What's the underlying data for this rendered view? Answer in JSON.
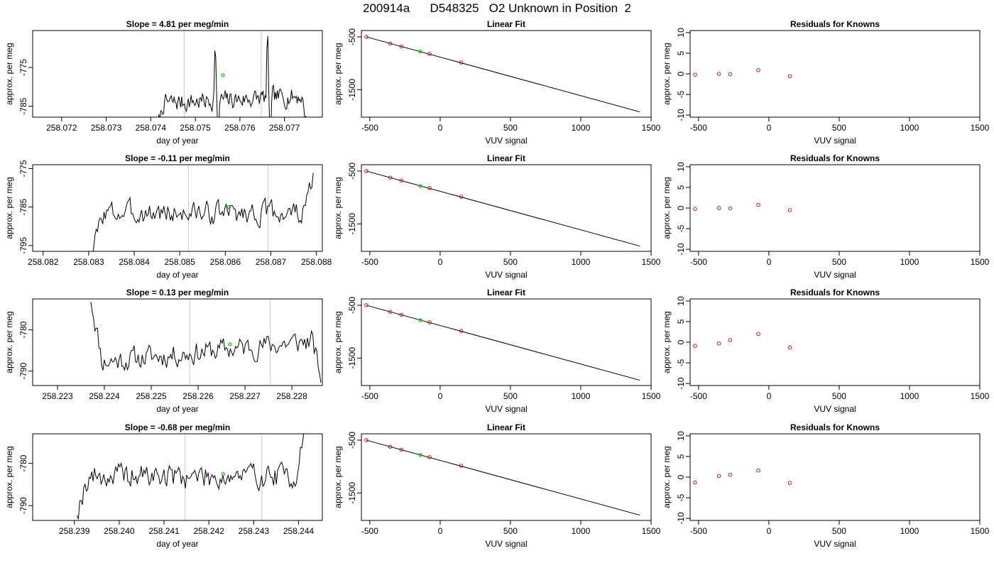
{
  "figure": {
    "title": "200914a      D548325   O2 Unknown in Position  2",
    "colors": {
      "line": "#000000",
      "marker": "#cc0000",
      "highlight": "#00cc00",
      "vline": "#c8c8c8"
    }
  },
  "chart_data": [
    {
      "type": "line",
      "title": "Slope =  4.81  per meg/min",
      "xlabel": "day of year",
      "ylabel": "approx. per meg",
      "xlim": [
        258.07135,
        258.07785
      ],
      "ylim": [
        -787.8,
        -765.5
      ],
      "xticks": [
        258.072,
        258.073,
        258.074,
        258.075,
        258.076,
        258.077
      ],
      "xtick_labels": [
        "258.072",
        "258.073",
        "258.074",
        "258.075",
        "258.076",
        "258.077"
      ],
      "yticks": [
        -785,
        -775
      ],
      "ytick_labels": [
        "-785",
        "-775"
      ],
      "vlines": [
        258.07475,
        258.07648
      ],
      "highlight_point": {
        "x": 258.07562,
        "y": -777.0
      },
      "series": [
        {
          "x_start": 258.07412,
          "x_end": 258.07752,
          "n": 160,
          "base": -784.3,
          "slope": 2.0,
          "noise": 1.3,
          "spikes": [
            [
              0.39,
              19
            ],
            [
              0.41,
              -16
            ],
            [
              0.735,
              18
            ],
            [
              0.755,
              -14
            ]
          ],
          "start_rise": -8,
          "end_drop": -9,
          "seed": 7
        }
      ]
    },
    {
      "type": "scatter",
      "title": "Linear Fit",
      "xlabel": "VUV signal",
      "ylabel": "approx. per meg",
      "xlim": [
        -560,
        1500
      ],
      "ylim": [
        -2020,
        -380
      ],
      "xticks": [
        -500,
        0,
        500,
        1000,
        1500
      ],
      "xtick_labels": [
        "-500",
        "0",
        "500",
        "1000",
        "1500"
      ],
      "yticks": [
        -500,
        -1500
      ],
      "ytick_labels": [
        "-500",
        "-1500"
      ],
      "fit_line": {
        "x": [
          -525,
          1420
        ],
        "y": [
          -500,
          -1920
        ]
      },
      "points": {
        "x": [
          -525,
          -355,
          -275,
          -75,
          150
        ],
        "y": [
          -500,
          -625,
          -680,
          -822,
          -985
        ]
      },
      "highlight_point": {
        "x": -140,
        "y": -777
      }
    },
    {
      "type": "scatter",
      "title": "Residuals for Knowns",
      "xlabel": "VUV signal",
      "ylabel": "approx. per meg",
      "xlim": [
        -560,
        1500
      ],
      "ylim": [
        -10.5,
        10.5
      ],
      "xticks": [
        -500,
        0,
        500,
        1000,
        1500
      ],
      "xtick_labels": [
        "-500",
        "0",
        "500",
        "1000",
        "1500"
      ],
      "yticks": [
        -10,
        -5,
        0,
        5,
        10
      ],
      "ytick_labels": [
        "-10",
        "-5",
        "0",
        "5",
        "10"
      ],
      "points": {
        "x": [
          -525,
          -355,
          -275,
          -75,
          150
        ],
        "y": [
          -0.2,
          0.0,
          -0.1,
          0.9,
          -0.6
        ]
      }
    },
    {
      "type": "line",
      "title": "Slope =  -0.11  per meg/min",
      "xlabel": "day of year",
      "ylabel": "approx. per meg",
      "xlim": [
        258.08177,
        258.08813
      ],
      "ylim": [
        -796.5,
        -774.0
      ],
      "xticks": [
        258.082,
        258.083,
        258.084,
        258.085,
        258.086,
        258.087,
        258.088
      ],
      "xtick_labels": [
        "258.082",
        "258.083",
        "258.084",
        "258.085",
        "258.086",
        "258.087",
        "258.088"
      ],
      "yticks": [
        -795,
        -785,
        -775
      ],
      "ytick_labels": [
        "-795",
        "-785",
        "-775"
      ],
      "vlines": [
        258.08519,
        258.08694
      ],
      "highlight_point": {
        "x": 258.08608,
        "y": -785.0
      },
      "series": [
        {
          "x_start": 258.08308,
          "x_end": 258.08793,
          "n": 170,
          "base": -786.5,
          "slope": 0.0,
          "noise": 1.6,
          "spikes": [],
          "start_rise": -10,
          "end_drop": 10,
          "seed": 3
        }
      ]
    },
    {
      "type": "scatter",
      "title": "Linear Fit",
      "xlabel": "VUV signal",
      "ylabel": "approx. per meg",
      "xlim": [
        -560,
        1500
      ],
      "ylim": [
        -2020,
        -380
      ],
      "xticks": [
        -500,
        0,
        500,
        1000,
        1500
      ],
      "xtick_labels": [
        "-500",
        "0",
        "500",
        "1000",
        "1500"
      ],
      "yticks": [
        -500,
        -1500
      ],
      "ytick_labels": [
        "-500",
        "-1500"
      ],
      "fit_line": {
        "x": [
          -525,
          1420
        ],
        "y": [
          -500,
          -1920
        ]
      },
      "points": {
        "x": [
          -525,
          -355,
          -275,
          -75,
          150
        ],
        "y": [
          -500,
          -625,
          -680,
          -822,
          -985
        ]
      },
      "highlight_point": {
        "x": -140,
        "y": -785
      }
    },
    {
      "type": "scatter",
      "title": "Residuals for Knowns",
      "xlabel": "VUV signal",
      "ylabel": "approx. per meg",
      "xlim": [
        -560,
        1500
      ],
      "ylim": [
        -10.5,
        10.5
      ],
      "xticks": [
        -500,
        0,
        500,
        1000,
        1500
      ],
      "xtick_labels": [
        "-500",
        "0",
        "500",
        "1000",
        "1500"
      ],
      "yticks": [
        -10,
        -5,
        0,
        5,
        10
      ],
      "ytick_labels": [
        "-10",
        "-5",
        "0",
        "5",
        "10"
      ],
      "points": {
        "x": [
          -525,
          -355,
          -275,
          -75,
          150
        ],
        "y": [
          -0.2,
          0.0,
          -0.1,
          0.8,
          -0.5
        ]
      }
    },
    {
      "type": "line",
      "title": "Slope =  0.13  per meg/min",
      "xlabel": "day of year",
      "ylabel": "approx. per meg",
      "xlim": [
        258.22247,
        258.22865
      ],
      "ylim": [
        -793.5,
        -772.5
      ],
      "xticks": [
        258.223,
        258.224,
        258.225,
        258.226,
        258.227,
        258.228
      ],
      "xtick_labels": [
        "258.223",
        "258.224",
        "258.225",
        "258.226",
        "258.227",
        "258.228"
      ],
      "yticks": [
        -790,
        -780
      ],
      "ytick_labels": [
        "-790",
        "-780"
      ],
      "vlines": [
        258.22582,
        258.22754
      ],
      "highlight_point": {
        "x": 258.22668,
        "y": -783.5
      },
      "series": [
        {
          "x_start": 258.22371,
          "x_end": 258.22862,
          "n": 170,
          "base": -788.0,
          "slope": 5.5,
          "noise": 1.5,
          "spikes": [],
          "start_rise": 16,
          "end_drop": -9,
          "seed": 11
        }
      ]
    },
    {
      "type": "scatter",
      "title": "Linear Fit",
      "xlabel": "VUV signal",
      "ylabel": "approx. per meg",
      "xlim": [
        -560,
        1500
      ],
      "ylim": [
        -2020,
        -380
      ],
      "xticks": [
        -500,
        0,
        500,
        1000,
        1500
      ],
      "xtick_labels": [
        "-500",
        "0",
        "500",
        "1000",
        "1500"
      ],
      "yticks": [
        -500,
        -1500
      ],
      "ytick_labels": [
        "-500",
        "-1500"
      ],
      "fit_line": {
        "x": [
          -525,
          1420
        ],
        "y": [
          -500,
          -1920
        ]
      },
      "points": {
        "x": [
          -525,
          -355,
          -275,
          -75,
          150
        ],
        "y": [
          -500,
          -625,
          -680,
          -822,
          -985
        ]
      },
      "highlight_point": {
        "x": -140,
        "y": -783
      }
    },
    {
      "type": "scatter",
      "title": "Residuals for Knowns",
      "xlabel": "VUV signal",
      "ylabel": "approx. per meg",
      "xlim": [
        -560,
        1500
      ],
      "ylim": [
        -10.5,
        10.5
      ],
      "xticks": [
        -500,
        0,
        500,
        1000,
        1500
      ],
      "xtick_labels": [
        "-500",
        "0",
        "500",
        "1000",
        "1500"
      ],
      "yticks": [
        -10,
        -5,
        0,
        5,
        10
      ],
      "ytick_labels": [
        "-10",
        "-5",
        "0",
        "5",
        "10"
      ],
      "points": {
        "x": [
          -525,
          -355,
          -275,
          -75,
          150
        ],
        "y": [
          -0.9,
          -0.3,
          0.5,
          2.0,
          -1.3
        ]
      }
    },
    {
      "type": "line",
      "title": "Slope =  -0.68  per meg/min",
      "xlabel": "day of year",
      "ylabel": "approx. per meg",
      "xlim": [
        258.23807,
        258.24453
      ],
      "ylim": [
        -793.5,
        -773.0
      ],
      "xticks": [
        258.239,
        258.24,
        258.241,
        258.242,
        258.243,
        258.244
      ],
      "xtick_labels": [
        "258.239",
        "258.240",
        "258.241",
        "258.242",
        "258.243",
        "258.244"
      ],
      "yticks": [
        -790,
        -780
      ],
      "ytick_labels": [
        "-790",
        "-780"
      ],
      "vlines": [
        258.24147,
        258.24318
      ],
      "highlight_point": {
        "x": 258.24232,
        "y": -782.5
      },
      "series": [
        {
          "x_start": 258.23906,
          "x_end": 258.24413,
          "n": 170,
          "base": -783.0,
          "slope": 0.0,
          "noise": 1.6,
          "spikes": [],
          "start_rise": -8,
          "end_drop": 10,
          "seed": 19
        }
      ]
    },
    {
      "type": "scatter",
      "title": "Linear Fit",
      "xlabel": "VUV signal",
      "ylabel": "approx. per meg",
      "xlim": [
        -560,
        1500
      ],
      "ylim": [
        -2020,
        -380
      ],
      "xticks": [
        -500,
        0,
        500,
        1000,
        1500
      ],
      "xtick_labels": [
        "-500",
        "0",
        "500",
        "1000",
        "1500"
      ],
      "yticks": [
        -500,
        -1500
      ],
      "ytick_labels": [
        "-500",
        "-1500"
      ],
      "fit_line": {
        "x": [
          -525,
          1420
        ],
        "y": [
          -500,
          -1920
        ]
      },
      "points": {
        "x": [
          -525,
          -355,
          -275,
          -75,
          150
        ],
        "y": [
          -500,
          -625,
          -680,
          -822,
          -985
        ]
      },
      "highlight_point": {
        "x": -140,
        "y": -782
      }
    },
    {
      "type": "scatter",
      "title": "Residuals for Knowns",
      "xlabel": "VUV signal",
      "ylabel": "approx. per meg",
      "xlim": [
        -560,
        1500
      ],
      "ylim": [
        -10.5,
        10.5
      ],
      "xticks": [
        -500,
        0,
        500,
        1000,
        1500
      ],
      "xtick_labels": [
        "-500",
        "0",
        "500",
        "1000",
        "1500"
      ],
      "yticks": [
        -10,
        -5,
        0,
        5,
        10
      ],
      "ytick_labels": [
        "-10",
        "-5",
        "0",
        "5",
        "10"
      ],
      "points": {
        "x": [
          -525,
          -355,
          -275,
          -75,
          150
        ],
        "y": [
          -1.3,
          0.3,
          0.6,
          1.6,
          -1.4
        ]
      }
    }
  ]
}
